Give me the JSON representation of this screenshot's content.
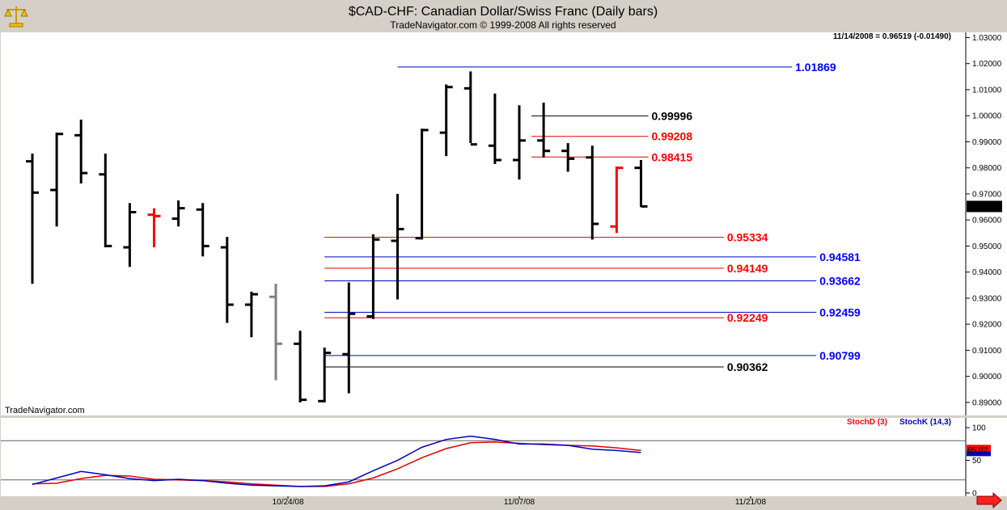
{
  "header": {
    "title": "$CAD-CHF:  Canadian Dollar/Swiss Franc  (Daily bars)",
    "copyright": "TradeNavigator.com © 1999-2008 All rights reserved",
    "last_quote": "11/14/2008 = 0.96519 (-0.01490)",
    "watermark": "TradeNavigator.com",
    "logo_icon": "scales-icon"
  },
  "colors": {
    "background": "#ffffff",
    "frame": "#d4d0c8",
    "bar": "#000000",
    "bar_alt_red": "#ff0000",
    "bar_alt_gray": "#808080",
    "line_blue": "#0000c0",
    "line_red": "#e00000",
    "line_black": "#000000",
    "label_blue": "#0000ff",
    "label_red": "#ff0000",
    "stoch_d": "#ff0000",
    "stoch_k": "#0000c0"
  },
  "chart_data": [
    {
      "type": "ohlc",
      "ylim": [
        0.885,
        1.032
      ],
      "y_ticks": [
        "1.03000",
        "1.02000",
        "1.01000",
        "1.00000",
        "0.99000",
        "0.98000",
        "0.97000",
        "0.96000",
        "0.95000",
        "0.94000",
        "0.93000",
        "0.92000",
        "0.91000",
        "0.90000",
        "0.89000"
      ],
      "x_ticks": [
        "10/24/08",
        "11/07/08",
        "11/21/08"
      ],
      "x_tick_bars": [
        10.5,
        20,
        29.5
      ],
      "last_value_badge": "0.96519",
      "bars": [
        {
          "o": 0.9825,
          "h": 0.9855,
          "l": 0.9355,
          "c": 0.9705,
          "color": "black"
        },
        {
          "o": 0.9715,
          "h": 0.9935,
          "l": 0.9575,
          "c": 0.993,
          "color": "black"
        },
        {
          "o": 0.9925,
          "h": 0.9985,
          "l": 0.974,
          "c": 0.978,
          "color": "black"
        },
        {
          "o": 0.9775,
          "h": 0.9855,
          "l": 0.9495,
          "c": 0.95,
          "color": "black"
        },
        {
          "o": 0.9495,
          "h": 0.9665,
          "l": 0.942,
          "c": 0.963,
          "color": "black"
        },
        {
          "o": 0.962,
          "h": 0.9645,
          "l": 0.9495,
          "c": 0.9615,
          "color": "red"
        },
        {
          "o": 0.9605,
          "h": 0.9675,
          "l": 0.9575,
          "c": 0.9645,
          "color": "black"
        },
        {
          "o": 0.964,
          "h": 0.9665,
          "l": 0.946,
          "c": 0.95,
          "color": "black"
        },
        {
          "o": 0.9495,
          "h": 0.9535,
          "l": 0.9205,
          "c": 0.9275,
          "color": "black"
        },
        {
          "o": 0.9275,
          "h": 0.9325,
          "l": 0.915,
          "c": 0.9315,
          "color": "black"
        },
        {
          "o": 0.9305,
          "h": 0.9355,
          "l": 0.8985,
          "c": 0.9125,
          "color": "gray"
        },
        {
          "o": 0.9125,
          "h": 0.9175,
          "l": 0.89,
          "c": 0.891,
          "color": "black"
        },
        {
          "o": 0.8905,
          "h": 0.911,
          "l": 0.89,
          "c": 0.909,
          "color": "black"
        },
        {
          "o": 0.9085,
          "h": 0.936,
          "l": 0.8935,
          "c": 0.924,
          "color": "black"
        },
        {
          "o": 0.923,
          "h": 0.9545,
          "l": 0.922,
          "c": 0.9525,
          "color": "black"
        },
        {
          "o": 0.952,
          "h": 0.97,
          "l": 0.9295,
          "c": 0.9565,
          "color": "black"
        },
        {
          "o": 0.953,
          "h": 0.995,
          "l": 0.9525,
          "c": 0.9945,
          "color": "black"
        },
        {
          "o": 0.9935,
          "h": 1.012,
          "l": 0.9845,
          "c": 1.011,
          "color": "black"
        },
        {
          "o": 1.0105,
          "h": 1.017,
          "l": 0.9895,
          "c": 0.989,
          "color": "black"
        },
        {
          "o": 0.9885,
          "h": 1.0085,
          "l": 0.9815,
          "c": 0.983,
          "color": "black"
        },
        {
          "o": 0.983,
          "h": 1.004,
          "l": 0.9755,
          "c": 0.9905,
          "color": "black"
        },
        {
          "o": 0.9905,
          "h": 1.005,
          "l": 0.984,
          "c": 0.9865,
          "color": "black"
        },
        {
          "o": 0.9865,
          "h": 0.9895,
          "l": 0.9785,
          "c": 0.9835,
          "color": "black"
        },
        {
          "o": 0.984,
          "h": 0.9885,
          "l": 0.9525,
          "c": 0.9585,
          "color": "black"
        },
        {
          "o": 0.9575,
          "h": 0.9805,
          "l": 0.955,
          "c": 0.98,
          "color": "red"
        },
        {
          "o": 0.98,
          "h": 0.983,
          "l": 0.965,
          "c": 0.9652,
          "color": "black"
        }
      ],
      "levels": [
        {
          "value": 1.01869,
          "label": "1.01869",
          "color": "blue",
          "from_bar": 15,
          "to_bar": 31.2
        },
        {
          "value": 0.99996,
          "label": "0.99996",
          "color": "black",
          "from_bar": 20.5,
          "to_bar": 25.3
        },
        {
          "value": 0.99208,
          "label": "0.99208",
          "color": "red",
          "from_bar": 20.5,
          "to_bar": 25.3
        },
        {
          "value": 0.98415,
          "label": "0.98415",
          "color": "red",
          "from_bar": 20.5,
          "to_bar": 25.3
        },
        {
          "value": 0.95334,
          "label": "0.95334",
          "color": "red",
          "from_bar": 12,
          "to_bar": 28.4
        },
        {
          "value": 0.94581,
          "label": "0.94581",
          "color": "blue",
          "from_bar": 12,
          "to_bar": 32.2
        },
        {
          "value": 0.94149,
          "label": "0.94149",
          "color": "red",
          "from_bar": 12,
          "to_bar": 28.4
        },
        {
          "value": 0.93662,
          "label": "0.93662",
          "color": "blue",
          "from_bar": 12,
          "to_bar": 32.2
        },
        {
          "value": 0.92459,
          "label": "0.92459",
          "color": "blue",
          "from_bar": 12,
          "to_bar": 32.2
        },
        {
          "value": 0.92249,
          "label": "0.92249",
          "color": "red",
          "from_bar": 12,
          "to_bar": 28.4
        },
        {
          "value": 0.90799,
          "label": "0.90799",
          "color": "blue",
          "from_bar": 12,
          "to_bar": 32.2
        },
        {
          "value": 0.90362,
          "label": "0.90362",
          "color": "black",
          "from_bar": 12,
          "to_bar": 28.4
        }
      ]
    },
    {
      "type": "line",
      "ylim": [
        -5,
        115
      ],
      "y_ticks": [
        "100",
        "50",
        "0"
      ],
      "guide_lines": [
        80,
        20
      ],
      "legend": [
        "StochD (3)",
        "StochK (14,3)"
      ],
      "last_value_badge": "65.07",
      "series": [
        {
          "name": "StochD (3)",
          "color": "red",
          "values": [
            14,
            15,
            22,
            27,
            26,
            21,
            20,
            19,
            17,
            14,
            12,
            10,
            10,
            14,
            23,
            37,
            54,
            68,
            77,
            78,
            76,
            74,
            73,
            72,
            69,
            65
          ]
        },
        {
          "name": "StochK (14,3)",
          "color": "blue",
          "values": [
            13,
            23,
            33,
            28,
            22,
            19,
            21,
            19,
            15,
            12,
            11,
            10,
            11,
            17,
            34,
            50,
            70,
            82,
            87,
            82,
            75,
            75,
            73,
            67,
            65,
            62
          ]
        }
      ]
    }
  ]
}
